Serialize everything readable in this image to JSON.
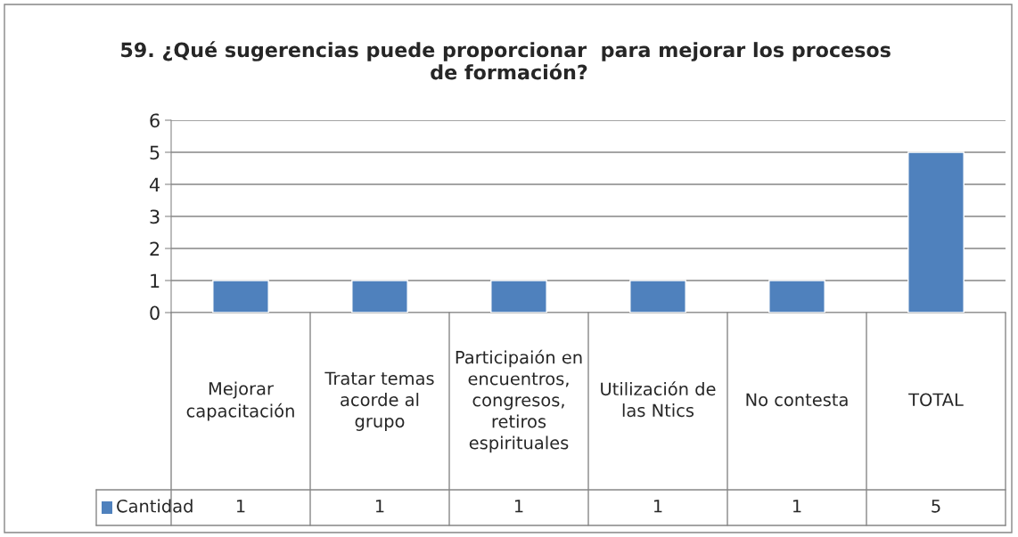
{
  "chart_data": {
    "type": "bar",
    "title": "59. ¿Qué sugerencias puede proporcionar  para mejorar los procesos  de formación?",
    "categories": [
      "Mejorar capacitación",
      "Tratar temas acorde al grupo",
      "Participaión en encuentros, congresos, retiros espirituales",
      "Utilización de las Ntics",
      "No contesta",
      "TOTAL"
    ],
    "series": [
      {
        "name": "Cantidad",
        "color": "#4f81bd",
        "values": [
          1,
          1,
          1,
          1,
          1,
          5
        ]
      }
    ],
    "ylim": [
      0,
      6
    ],
    "yticks": [
      0,
      1,
      2,
      3,
      4,
      5,
      6
    ],
    "grid": "y",
    "legend": "bottom",
    "data_labels": true
  }
}
